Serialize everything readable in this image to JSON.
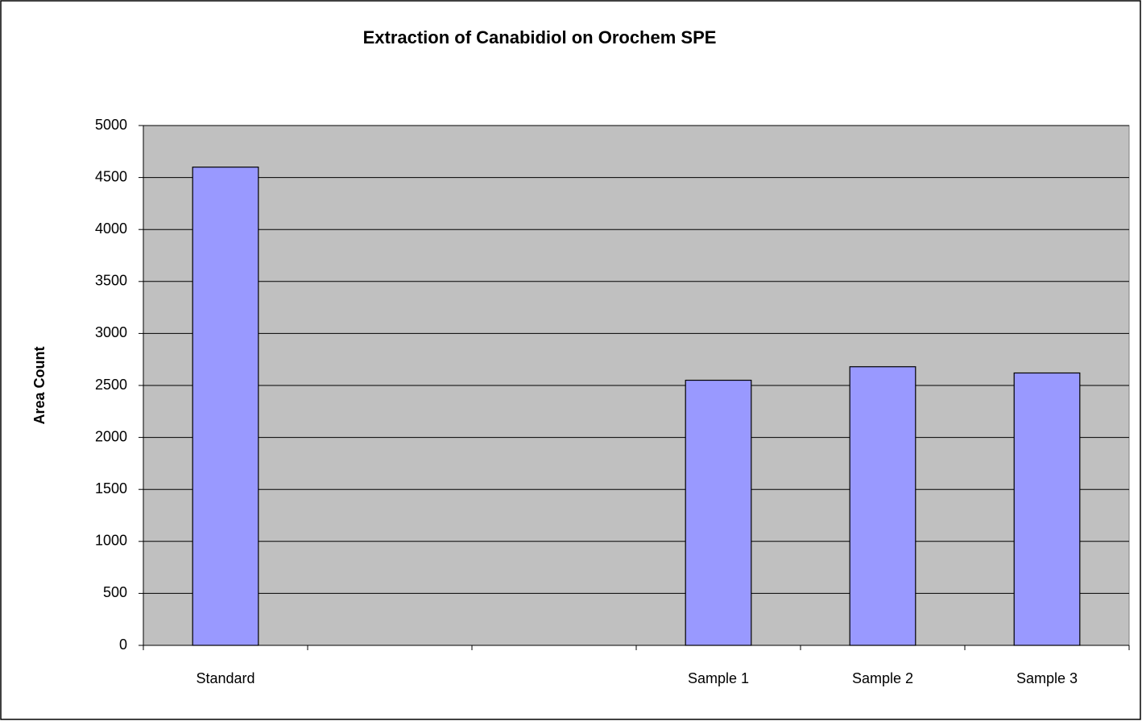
{
  "chart_data": {
    "type": "bar",
    "title": "Extraction of Canabidiol on Orochem SPE",
    "y_label": "Area Count",
    "categories": [
      "Standard",
      null,
      null,
      "Sample 1",
      "Sample 2",
      "Sample 3"
    ],
    "values": [
      4600,
      null,
      null,
      2550,
      2680,
      2620
    ],
    "color": "#9999ff",
    "background": "#c0c0c0",
    "ylim": [
      0,
      5000
    ],
    "yticks": [
      0,
      500,
      1000,
      1500,
      2000,
      2500,
      3000,
      3500,
      4000,
      4500,
      5000
    ],
    "grid": true
  }
}
